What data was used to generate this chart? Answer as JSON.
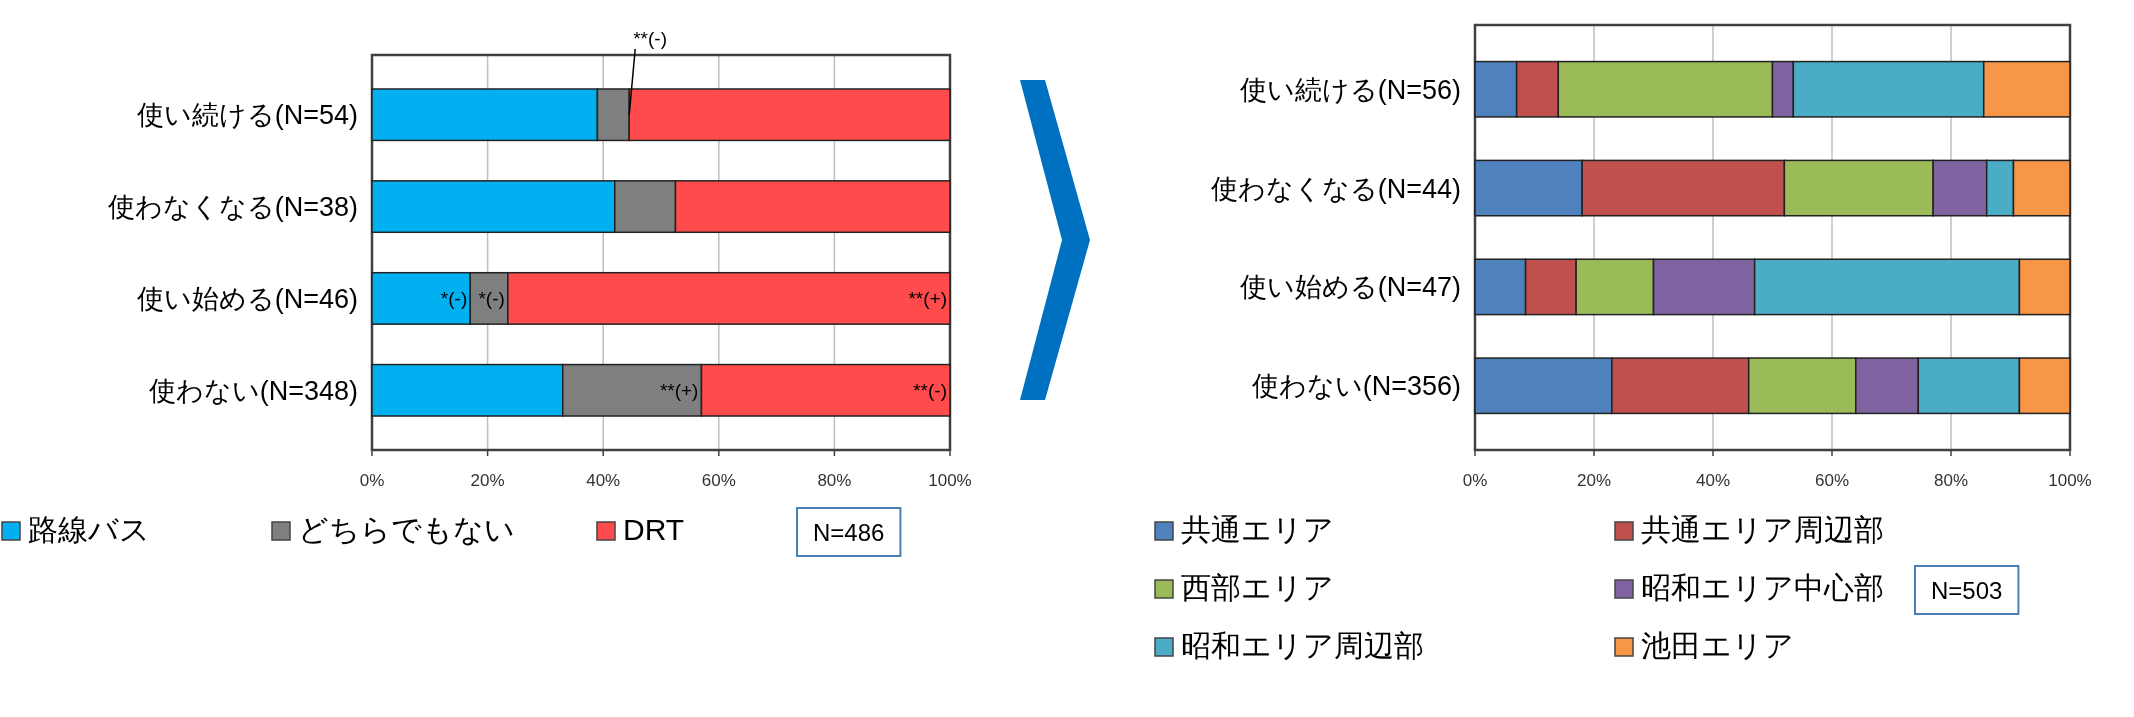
{
  "chart_data": [
    {
      "type": "bar",
      "orientation": "horizontal",
      "stacked": true,
      "grid": "x",
      "legend": "bottom",
      "categories": [
        "使い続ける(N=54)",
        "使わなくなる(N=38)",
        "使い始める(N=46)",
        "使わない(N=348)"
      ],
      "series": [
        {
          "name": "路線バス",
          "color": "#00b0f0",
          "values": [
            39,
            42,
            17,
            33
          ]
        },
        {
          "name": "どちらでもない",
          "color": "#7f7f7f",
          "values": [
            5.5,
            10.5,
            6.5,
            24
          ]
        },
        {
          "name": "DRT",
          "color": "#ff4b4b",
          "values": [
            55.5,
            47.5,
            76.5,
            43
          ]
        }
      ],
      "xlim": [
        0,
        100
      ],
      "xticks": [
        {
          "value": 0,
          "label": "0%"
        },
        {
          "value": 20,
          "label": "20%"
        },
        {
          "value": 40,
          "label": "40%"
        },
        {
          "value": 60,
          "label": "60%"
        },
        {
          "value": 80,
          "label": "80%"
        },
        {
          "value": 100,
          "label": "100%"
        }
      ],
      "annotations": [
        {
          "text": "**(-)",
          "x": 44.5,
          "y": "使い続ける(N=54)"
        },
        {
          "text": "*(-)",
          "x": 17,
          "y": "使い始める(N=46)"
        },
        {
          "text": "*(-)",
          "x": 23.5,
          "y": "使い始める(N=46)"
        },
        {
          "text": "**(+)",
          "x": 100,
          "y": "使い始める(N=46)"
        },
        {
          "text": "**(+)",
          "x": 57,
          "y": "使わない(N=348)"
        },
        {
          "text": "**(-)",
          "x": 100,
          "y": "使わない(N=348)"
        },
        "N=486"
      ]
    },
    {
      "type": "bar",
      "orientation": "horizontal",
      "stacked": true,
      "grid": "x",
      "legend": "bottom",
      "categories": [
        "使い続ける(N=56)",
        "使わなくなる(N=44)",
        "使い始める(N=47)",
        "使わない(N=356)"
      ],
      "series": [
        {
          "name": "共通エリア",
          "color": "#4f81bd",
          "values": [
            7,
            18,
            8.5,
            23
          ]
        },
        {
          "name": "共通エリア周辺部",
          "color": "#c0504d",
          "values": [
            7,
            34,
            8.5,
            23
          ]
        },
        {
          "name": "西部エリア",
          "color": "#9bbb59",
          "values": [
            36,
            25,
            13,
            18
          ]
        },
        {
          "name": "昭和エリア中心部",
          "color": "#8064a2",
          "values": [
            3.5,
            9,
            17,
            10.5
          ]
        },
        {
          "name": "昭和エリア周辺部",
          "color": "#4bacc6",
          "values": [
            32,
            4.5,
            44.5,
            17
          ]
        },
        {
          "name": "池田エリア",
          "color": "#f79646",
          "values": [
            14.5,
            9.5,
            8.5,
            8.5
          ]
        }
      ],
      "xlim": [
        0,
        100
      ],
      "xticks": [
        {
          "value": 0,
          "label": "0%"
        },
        {
          "value": 20,
          "label": "20%"
        },
        {
          "value": 40,
          "label": "40%"
        },
        {
          "value": 60,
          "label": "60%"
        },
        {
          "value": 80,
          "label": "80%"
        },
        {
          "value": 100,
          "label": "100%"
        }
      ],
      "annotations": [
        "N=503"
      ]
    }
  ]
}
